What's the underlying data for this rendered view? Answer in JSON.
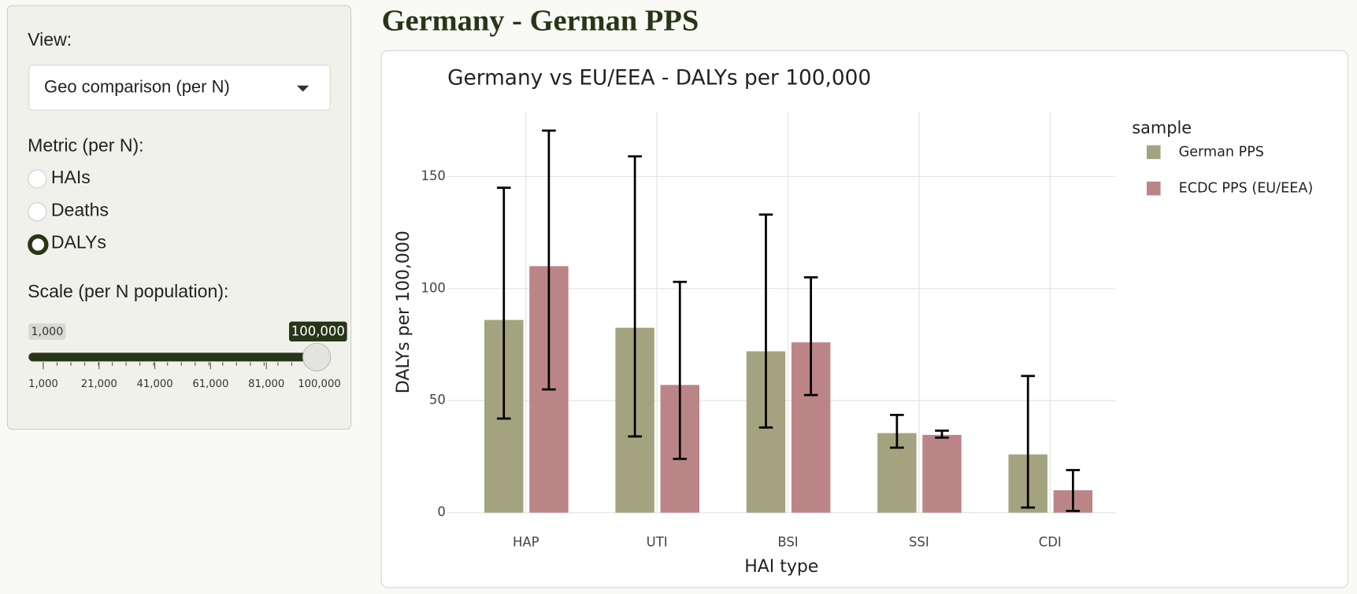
{
  "page_title": "Germany - German PPS",
  "sidebar": {
    "view": {
      "label": "View:",
      "selected": "Geo comparison (per N)"
    },
    "metric": {
      "label": "Metric (per N):",
      "options": [
        "HAIs",
        "Deaths",
        "DALYs"
      ],
      "selected": 2
    },
    "scale": {
      "label": "Scale (per N population):",
      "min": {
        "value": 1000,
        "label": "1,000"
      },
      "value": {
        "value": 100000,
        "label": "100,000"
      },
      "ticks": [
        {
          "value": 1000,
          "label": "1,000"
        },
        {
          "value": 21000,
          "label": "21,000"
        },
        {
          "value": 41000,
          "label": "41,000"
        },
        {
          "value": 61000,
          "label": "61,000"
        },
        {
          "value": 81000,
          "label": "81,000"
        },
        {
          "value": 100000,
          "label": "100,000"
        }
      ]
    }
  },
  "chart_data": {
    "type": "bar",
    "title": "Germany vs EU/EEA - DALYs per 100,000",
    "x_label": "HAI type",
    "y_label": "DALYs per 100,000",
    "legend_title": "sample",
    "legend": "right",
    "categories": [
      "HAP",
      "UTI",
      "BSI",
      "SSI",
      "CDI"
    ],
    "series": [
      {
        "name": "German PPS",
        "color": "#a3a380",
        "values": [
          86,
          82.5,
          72,
          35.5,
          26
        ],
        "lower": [
          42,
          34,
          38,
          29,
          2.3
        ],
        "upper": [
          145,
          159,
          133,
          43.6,
          61
        ]
      },
      {
        "name": "ECDC PPS (EU/EEA)",
        "color": "#bb8588",
        "values": [
          110,
          57,
          76,
          34.7,
          10
        ],
        "lower": [
          55,
          24,
          52.5,
          33.5,
          0.8
        ],
        "upper": [
          170.5,
          103,
          105,
          36.6,
          19
        ]
      }
    ],
    "ylim": [
      0,
      179
    ],
    "yticks": [
      0,
      50,
      100,
      150
    ],
    "grid": true
  }
}
